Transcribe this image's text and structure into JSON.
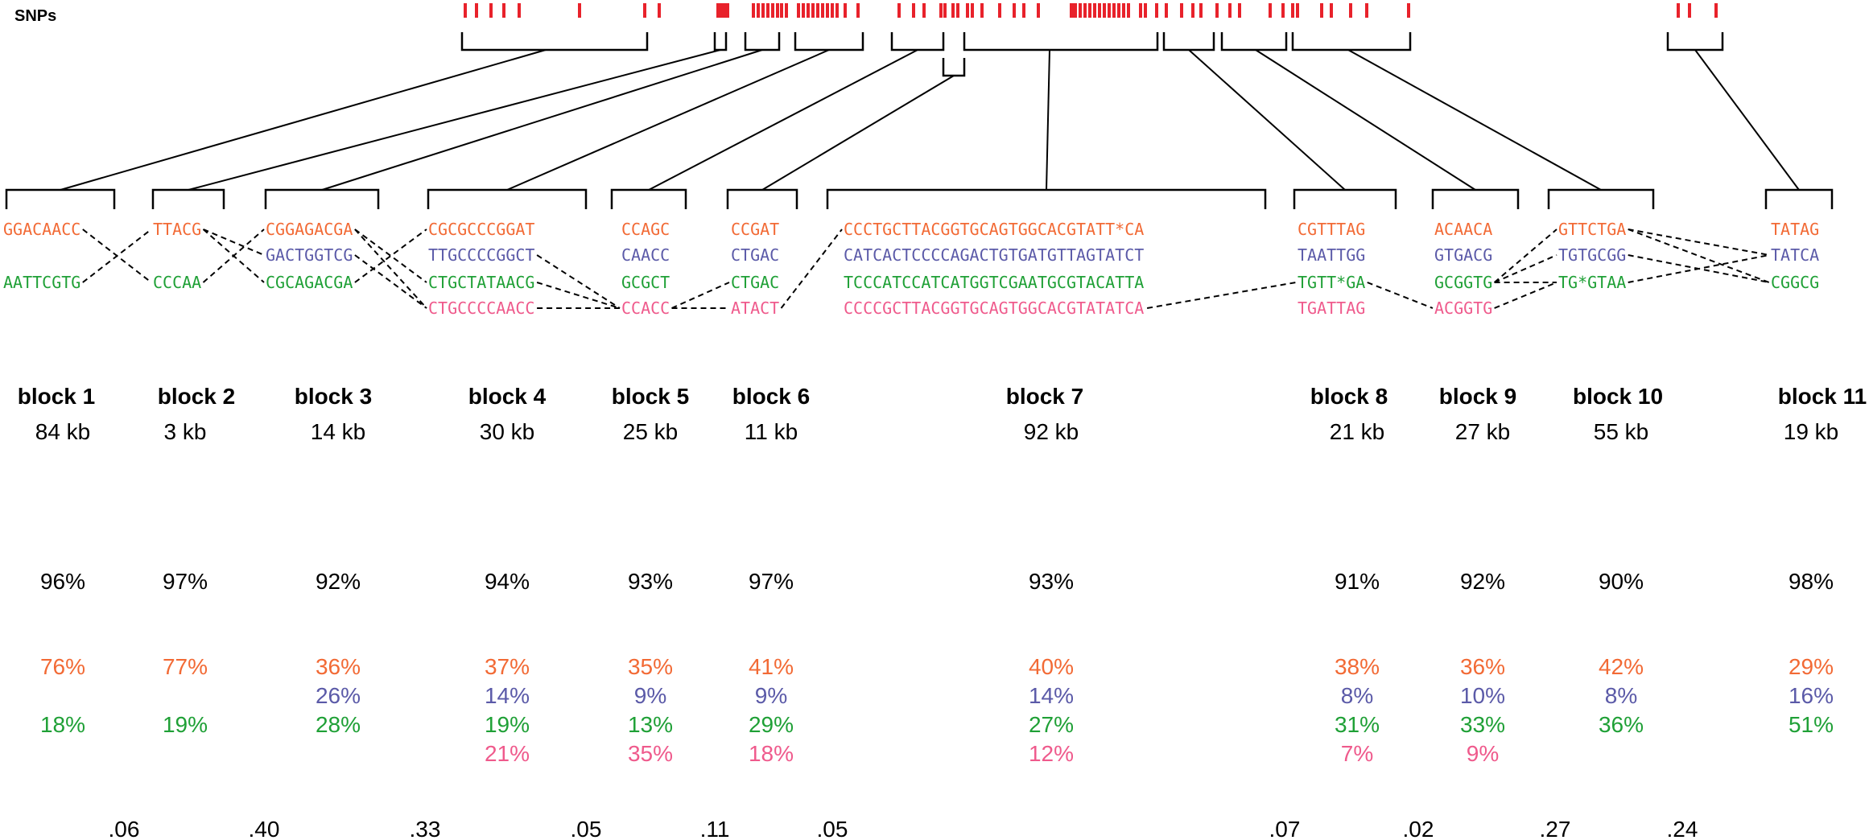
{
  "colors": {
    "hap1": "#f26a35",
    "hap2": "#5b5aa8",
    "hap3": "#1fa036",
    "hap4": "#ef5a8c",
    "snp": "#e8222b",
    "line": "#000000"
  },
  "snp_label": "SNPs",
  "blocks": [
    {
      "label": "block 1",
      "size": "84 kb",
      "total": "96%",
      "haplotypes": [
        {
          "row": 0,
          "color": "hap1",
          "seq": "GGACAACC",
          "pct": "76%"
        },
        {
          "row": 2,
          "color": "hap3",
          "seq": "AATTCGTG",
          "pct": "18%"
        }
      ]
    },
    {
      "label": "block 2",
      "size": "3 kb",
      "total": "97%",
      "haplotypes": [
        {
          "row": 0,
          "color": "hap1",
          "seq": "TTACG",
          "pct": "77%"
        },
        {
          "row": 2,
          "color": "hap3",
          "seq": "CCCAA",
          "pct": "19%"
        }
      ]
    },
    {
      "label": "block 3",
      "size": "14 kb",
      "total": "92%",
      "haplotypes": [
        {
          "row": 0,
          "color": "hap1",
          "seq": "CGGAGACGA",
          "pct": "36%"
        },
        {
          "row": 1,
          "color": "hap2",
          "seq": "GACTGGTCG",
          "pct": "26%"
        },
        {
          "row": 2,
          "color": "hap3",
          "seq": "CGCAGACGA",
          "pct": "28%"
        }
      ]
    },
    {
      "label": "block 4",
      "size": "30 kb",
      "total": "94%",
      "haplotypes": [
        {
          "row": 0,
          "color": "hap1",
          "seq": "CGCGCCCGGAT",
          "pct": "37%"
        },
        {
          "row": 1,
          "color": "hap2",
          "seq": "TTGCCCCGGCT",
          "pct": "14%"
        },
        {
          "row": 2,
          "color": "hap3",
          "seq": "CTGCTATAACG",
          "pct": "19%"
        },
        {
          "row": 3,
          "color": "hap4",
          "seq": "CTGCCCCAACC",
          "pct": "21%"
        }
      ]
    },
    {
      "label": "block 5",
      "size": "25 kb",
      "total": "93%",
      "haplotypes": [
        {
          "row": 0,
          "color": "hap1",
          "seq": "CCAGC",
          "pct": "35%"
        },
        {
          "row": 1,
          "color": "hap2",
          "seq": "CAACC",
          "pct": "9%"
        },
        {
          "row": 2,
          "color": "hap3",
          "seq": "GCGCT",
          "pct": "13%"
        },
        {
          "row": 3,
          "color": "hap4",
          "seq": "CCACC",
          "pct": "35%"
        }
      ]
    },
    {
      "label": "block 6",
      "size": "11 kb",
      "total": "97%",
      "haplotypes": [
        {
          "row": 0,
          "color": "hap1",
          "seq": "CCGAT",
          "pct": "41%"
        },
        {
          "row": 1,
          "color": "hap2",
          "seq": "CTGAC",
          "pct": "9%"
        },
        {
          "row": 2,
          "color": "hap3",
          "seq": "CTGAC",
          "pct": "29%"
        },
        {
          "row": 3,
          "color": "hap4",
          "seq": "ATACT",
          "pct": "18%"
        }
      ]
    },
    {
      "label": "block 7",
      "size": "92 kb",
      "total": "93%",
      "haplotypes": [
        {
          "row": 0,
          "color": "hap1",
          "seq": "CCCTGCTTACGGTGCAGTGGCACGTATT*CA",
          "pct": "40%"
        },
        {
          "row": 1,
          "color": "hap2",
          "seq": "CATCACTCCCCAGACTGTGATGTTAGTATCT",
          "pct": "14%"
        },
        {
          "row": 2,
          "color": "hap3",
          "seq": "TCCCATCCATCATGGTCGAATGCGTACATTA",
          "pct": "27%"
        },
        {
          "row": 3,
          "color": "hap4",
          "seq": "CCCCGCTTACGGTGCAGTGGCACGTATATCA",
          "pct": "12%"
        }
      ]
    },
    {
      "label": "block 8",
      "size": "21 kb",
      "total": "91%",
      "haplotypes": [
        {
          "row": 0,
          "color": "hap1",
          "seq": "CGTTTAG",
          "pct": "38%"
        },
        {
          "row": 1,
          "color": "hap2",
          "seq": "TAATTGG",
          "pct": "8%"
        },
        {
          "row": 2,
          "color": "hap3",
          "seq": "TGTT*GA",
          "pct": "31%"
        },
        {
          "row": 3,
          "color": "hap4",
          "seq": "TGATTAG",
          "pct": "7%"
        }
      ]
    },
    {
      "label": "block 9",
      "size": "27 kb",
      "total": "92%",
      "haplotypes": [
        {
          "row": 0,
          "color": "hap1",
          "seq": "ACAACA",
          "pct": "36%"
        },
        {
          "row": 1,
          "color": "hap2",
          "seq": "GTGACG",
          "pct": "10%"
        },
        {
          "row": 2,
          "color": "hap3",
          "seq": "GCGGTG",
          "pct": "33%"
        },
        {
          "row": 3,
          "color": "hap4",
          "seq": "ACGGTG",
          "pct": "9%"
        }
      ]
    },
    {
      "label": "block 10",
      "size": "55 kb",
      "total": "90%",
      "haplotypes": [
        {
          "row": 0,
          "color": "hap1",
          "seq": "GTTCTGA",
          "pct": "42%"
        },
        {
          "row": 1,
          "color": "hap2",
          "seq": "TGTGCGG",
          "pct": "8%"
        },
        {
          "row": 2,
          "color": "hap3",
          "seq": "TG*GTAA",
          "pct": "36%"
        }
      ]
    },
    {
      "label": "block 11",
      "size": "19 kb",
      "total": "98%",
      "haplotypes": [
        {
          "row": 0,
          "color": "hap1",
          "seq": "TATAG",
          "pct": "29%"
        },
        {
          "row": 1,
          "color": "hap2",
          "seq": "TATCA",
          "pct": "16%"
        },
        {
          "row": 2,
          "color": "hap3",
          "seq": "CGGCG",
          "pct": "51%"
        }
      ]
    }
  ],
  "gaps": [
    ".06",
    ".40",
    ".33",
    ".05",
    ".11",
    ".05",
    ".07",
    ".02",
    ".27",
    ".24"
  ]
}
